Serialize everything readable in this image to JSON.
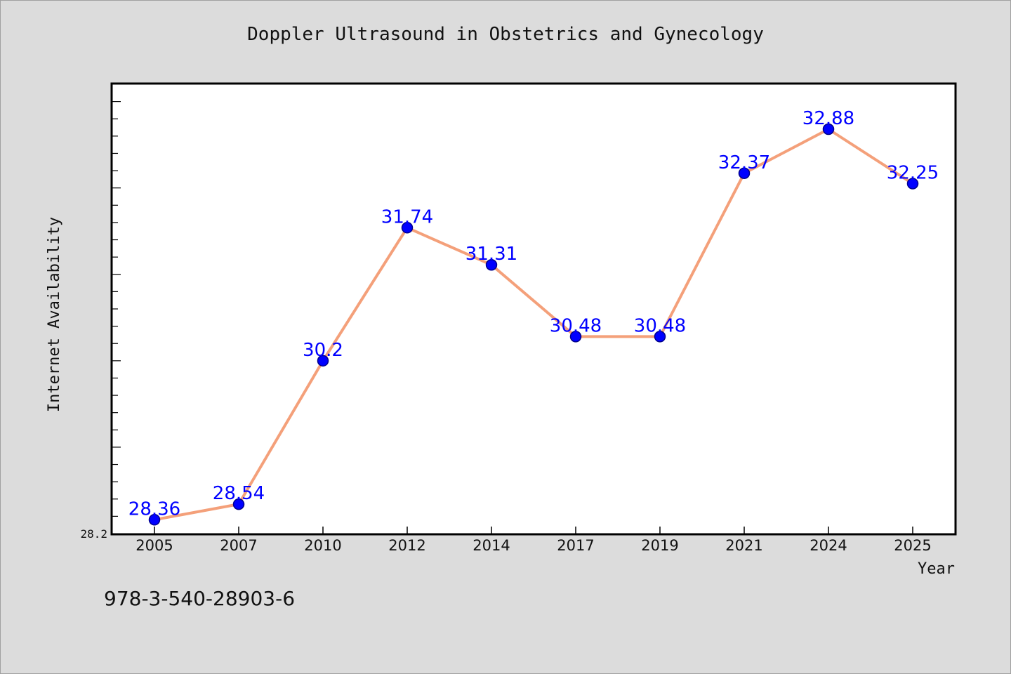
{
  "footnote": "978-3-540-28903-6",
  "chart_data": {
    "type": "line",
    "title": "Doppler Ultrasound in Obstetrics and Gynecology",
    "xlabel": "Year",
    "ylabel": "Internet Availability",
    "categories": [
      "2005",
      "2007",
      "2010",
      "2012",
      "2014",
      "2017",
      "2019",
      "2021",
      "2024",
      "2025"
    ],
    "values": [
      28.36,
      28.54,
      30.2,
      31.74,
      31.31,
      30.48,
      30.48,
      32.37,
      32.88,
      32.25
    ],
    "value_labels": [
      "28.36",
      "28.54",
      "30.2",
      "31.74",
      "31.31",
      "30.48",
      "30.48",
      "32.37",
      "32.88",
      "32.25"
    ],
    "ylim": [
      28.2,
      33.4
    ],
    "y_min_label": "28.2",
    "grid": false,
    "colors": {
      "line": "#f4a07a",
      "marker": "#0000ff",
      "marker_edge": "#00008b",
      "label": "#0000ff",
      "plot_bg": "#ffffff",
      "page_bg": "#dcdcdc"
    }
  }
}
